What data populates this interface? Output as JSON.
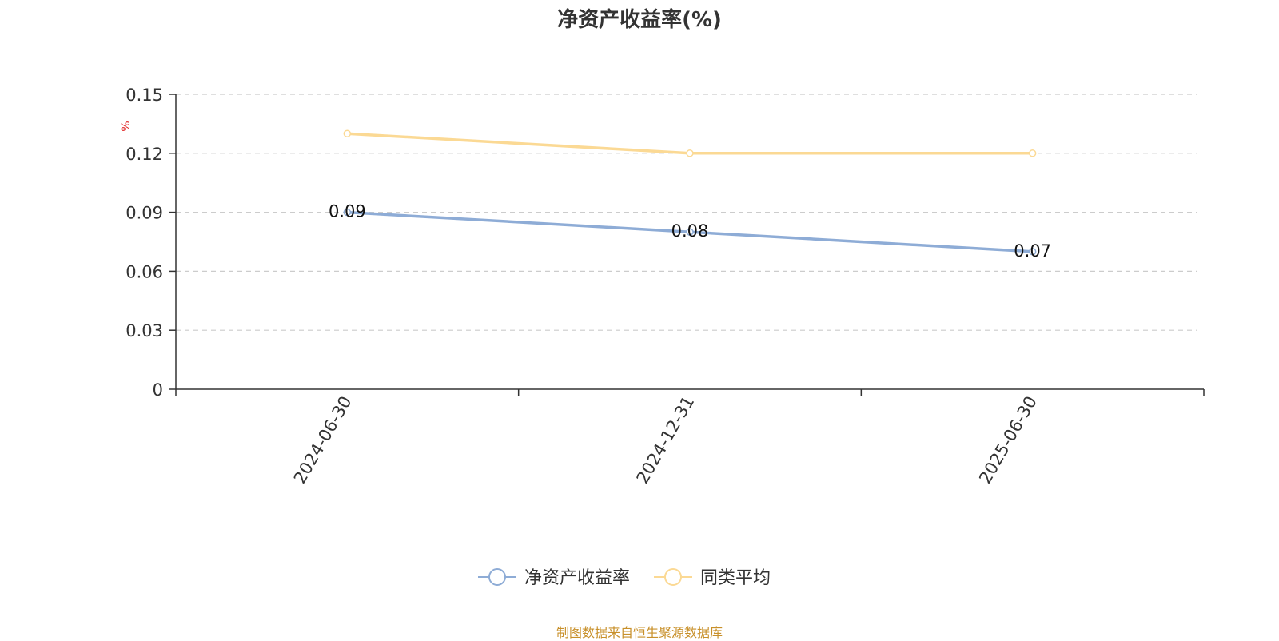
{
  "chart_data": {
    "type": "line",
    "title": "净资产收益率(%)",
    "ylabel": "%",
    "categories": [
      "2024-06-30",
      "2024-12-31",
      "2025-06-30"
    ],
    "ylim": [
      0,
      0.15
    ],
    "yticks": [
      "0",
      "0.03",
      "0.06",
      "0.09",
      "0.12",
      "0.15"
    ],
    "grid": true,
    "legend_position": "bottom",
    "series": [
      {
        "name": "净资产收益率",
        "values": [
          0.09,
          0.08,
          0.07
        ],
        "color": "#8eacd6",
        "labels": [
          "0.09",
          "0.08",
          "0.07"
        ]
      },
      {
        "name": "同类平均",
        "values": [
          0.13,
          0.12,
          0.12
        ],
        "color": "#fbd994"
      }
    ]
  },
  "footer": {
    "source": "制图数据来自恒生聚源数据库",
    "color": "#c8902a"
  },
  "colors": {
    "axis": "#333333",
    "grid": "#cccccc",
    "ylabel": "#e02020"
  }
}
